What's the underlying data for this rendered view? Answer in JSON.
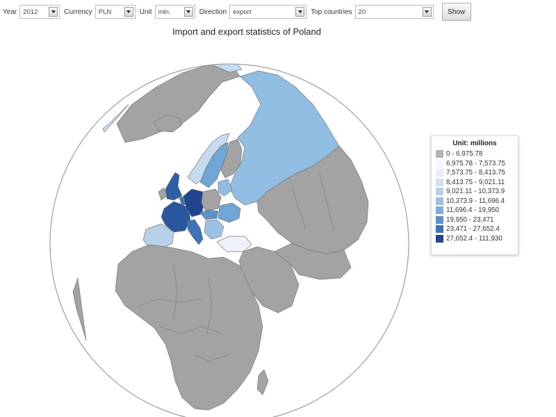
{
  "controls": {
    "year_label": "Year",
    "year_value": "2012",
    "currency_label": "Currency",
    "currency_value": "PLN",
    "unit_label": "Unit",
    "unit_value": "mln.",
    "direction_label": "Direction",
    "direction_value": "export",
    "top_label": "Top countries",
    "top_value": "20",
    "show_label": "Show"
  },
  "title": "Import and export statistics of Poland",
  "legend": {
    "title": "Unit: millions",
    "classes": [
      {
        "label": "0 - 6,975.78",
        "color": "#b3b3b3"
      },
      {
        "label": "6,975.78 - 7,573.75",
        "color": "#f5f8fc"
      },
      {
        "label": "7,573.75 - 8,413.75",
        "color": "#e6eef7"
      },
      {
        "label": "8,413.75 - 9,021.11",
        "color": "#d2e1f1"
      },
      {
        "label": "9,021.11 - 10,373.9",
        "color": "#b8d1ea"
      },
      {
        "label": "10,373.9 - 11,696.4",
        "color": "#9cc1e3"
      },
      {
        "label": "11,696.4 - 19,950",
        "color": "#7eaedb"
      },
      {
        "label": "19,950 - 23,471",
        "color": "#5b92cc"
      },
      {
        "label": "23,471 - 27,652.4",
        "color": "#3d74b8"
      },
      {
        "label": "27,652.4 - 111,930",
        "color": "#21468f"
      }
    ]
  },
  "colors": {
    "no_data": "#a3a3a3",
    "ocean": "#ffffff",
    "border": "#7a7a7a"
  }
}
